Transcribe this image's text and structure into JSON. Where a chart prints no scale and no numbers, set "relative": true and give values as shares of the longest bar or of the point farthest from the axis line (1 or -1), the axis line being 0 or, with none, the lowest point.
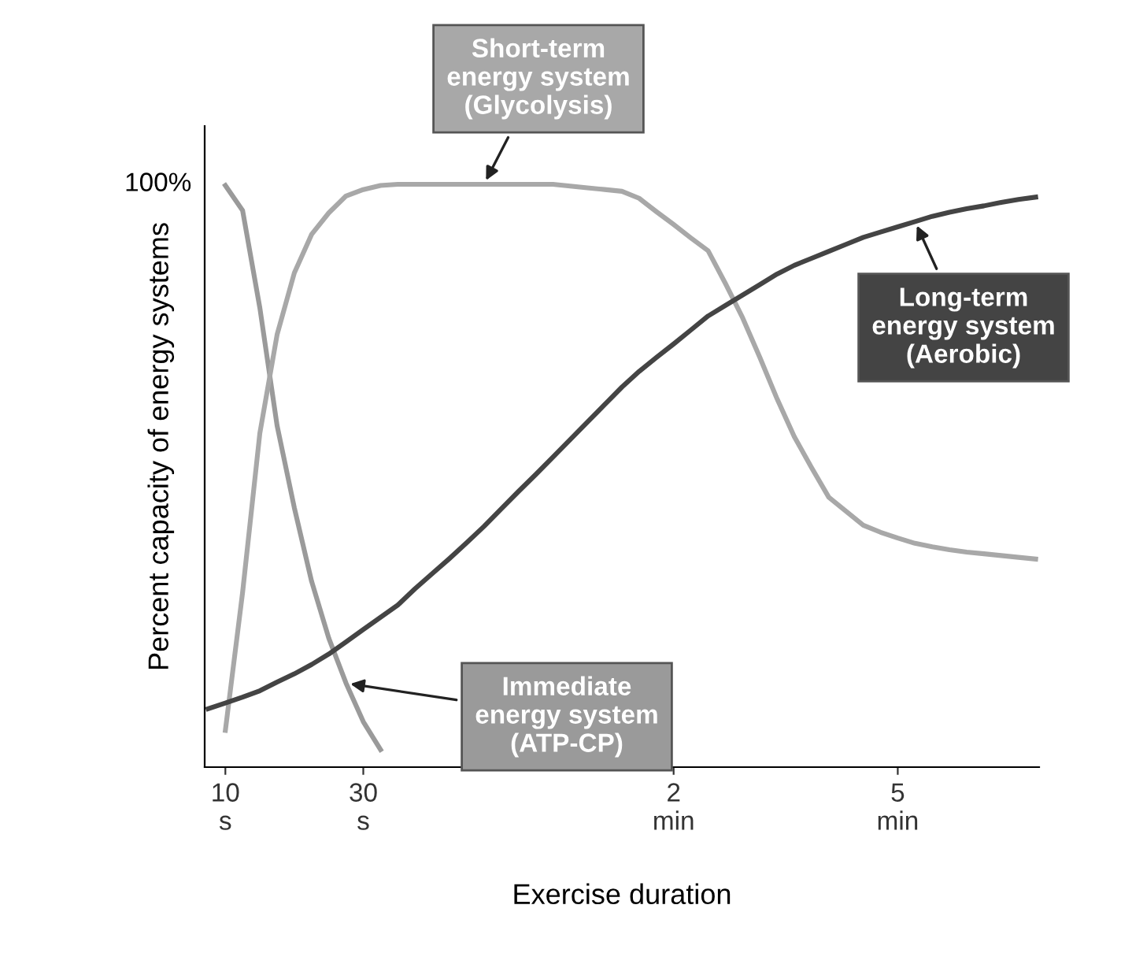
{
  "chart_data": {
    "type": "line",
    "relative": true,
    "xlabel": "Exercise duration",
    "ylabel": "Percent capacity of energy systems",
    "annotations": [
      "100%"
    ],
    "categories": [
      null,
      "10\ns",
      null,
      null,
      null,
      null,
      null,
      null,
      null,
      "30\ns",
      null,
      null,
      null,
      null,
      null,
      null,
      null,
      null,
      null,
      null,
      null,
      null,
      null,
      null,
      null,
      null,
      null,
      "2\nmin",
      null,
      null,
      null,
      null,
      null,
      null,
      null,
      null,
      null,
      null,
      null,
      null,
      "5\nmin",
      null,
      null,
      null,
      null,
      null,
      null,
      null,
      null
    ],
    "grid": false,
    "marker": "none",
    "line_style": "solid",
    "series": [
      {
        "name": "Immediate\nenergy system\n(ATP-CP)",
        "color": "#9a9a9a",
        "values": [
          null,
          0.998,
          0.955,
          0.788,
          0.586,
          0.445,
          0.319,
          0.221,
          0.144,
          0.078,
          0.03,
          null,
          null,
          null,
          null,
          null,
          null,
          null,
          null,
          null,
          null,
          null,
          null,
          null,
          null,
          null,
          null,
          null,
          null,
          null,
          null,
          null,
          null,
          null,
          null,
          null,
          null,
          null,
          null,
          null,
          null,
          null,
          null,
          null,
          null,
          null,
          null,
          null,
          null
        ]
      },
      {
        "name": "Short-term\nenergy system\n(Glycolysis)",
        "color": "#a8a8a8",
        "values": [
          null,
          0.063,
          0.3,
          0.573,
          0.742,
          0.848,
          0.914,
          0.951,
          0.98,
          0.991,
          0.998,
          1.0,
          1.0,
          1.0,
          1.0,
          1.0,
          1.0,
          1.0,
          1.0,
          1.0,
          1.0,
          0.997,
          0.994,
          0.991,
          0.988,
          0.976,
          0.953,
          0.931,
          0.908,
          0.886,
          0.83,
          0.771,
          0.703,
          0.632,
          0.567,
          0.514,
          0.463,
          0.439,
          0.415,
          0.403,
          0.393,
          0.384,
          0.378,
          0.373,
          0.369,
          0.366,
          0.363,
          0.36,
          0.357
        ]
      },
      {
        "name": "Long-term\nenergy system\n(Aerobic)",
        "color": "#444444",
        "values": [
          0.1,
          0.11,
          0.12,
          0.131,
          0.146,
          0.16,
          0.176,
          0.194,
          0.215,
          0.236,
          0.257,
          0.278,
          0.306,
          0.332,
          0.358,
          0.385,
          0.413,
          0.443,
          0.473,
          0.502,
          0.532,
          0.562,
          0.592,
          0.622,
          0.652,
          0.679,
          0.703,
          0.726,
          0.75,
          0.774,
          0.792,
          0.81,
          0.828,
          0.846,
          0.861,
          0.873,
          0.885,
          0.897,
          0.909,
          0.918,
          0.927,
          0.936,
          0.945,
          0.952,
          0.958,
          0.963,
          0.969,
          0.974,
          0.978
        ]
      }
    ]
  }
}
